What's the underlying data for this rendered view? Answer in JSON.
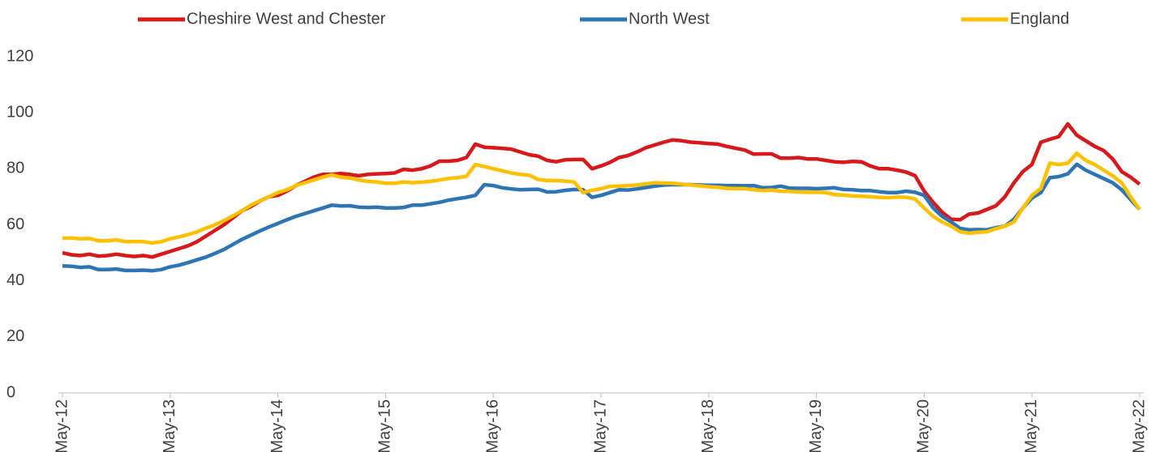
{
  "chart_data": {
    "type": "line",
    "categories": [
      "May-12",
      null,
      null,
      null,
      null,
      null,
      null,
      null,
      null,
      null,
      null,
      null,
      "May-13",
      null,
      null,
      null,
      null,
      null,
      null,
      null,
      null,
      null,
      null,
      null,
      "May-14",
      null,
      null,
      null,
      null,
      null,
      null,
      null,
      null,
      null,
      null,
      null,
      "May-15",
      null,
      null,
      null,
      null,
      null,
      null,
      null,
      null,
      null,
      null,
      null,
      "May-16",
      null,
      null,
      null,
      null,
      null,
      null,
      null,
      null,
      null,
      null,
      null,
      "May-17",
      null,
      null,
      null,
      null,
      null,
      null,
      null,
      null,
      null,
      null,
      null,
      "May-18",
      null,
      null,
      null,
      null,
      null,
      null,
      null,
      null,
      null,
      null,
      null,
      "May-19",
      null,
      null,
      null,
      null,
      null,
      null,
      null,
      null,
      null,
      null,
      null,
      "May-20",
      null,
      null,
      null,
      null,
      null,
      null,
      null,
      null,
      null,
      null,
      null,
      "May-21",
      null,
      null,
      null,
      null,
      null,
      null,
      null,
      null,
      null,
      null,
      null,
      "May-22"
    ],
    "series": [
      {
        "name": "Cheshire West and Chester",
        "color": "#d7191c",
        "values": [
          50,
          49.3,
          49,
          49.5,
          48.8,
          49,
          49.5,
          49,
          48.7,
          49,
          48.5,
          49.5,
          50.5,
          51.5,
          52.5,
          54,
          56,
          58,
          60,
          62.5,
          65,
          66.5,
          68.5,
          70,
          70.5,
          72,
          74,
          75.5,
          77,
          78,
          78,
          78.3,
          78,
          77.5,
          78,
          78.2,
          78.3,
          78.5,
          79.8,
          79.5,
          80,
          81,
          82.7,
          82.7,
          83,
          84,
          88.8,
          87.7,
          87.5,
          87.3,
          87,
          86,
          85,
          84.5,
          83,
          82.5,
          83.2,
          83.3,
          83.3,
          80,
          81,
          82.3,
          84,
          84.7,
          86,
          87.5,
          88.5,
          89.5,
          90.3,
          90,
          89.5,
          89.3,
          89,
          88.8,
          88,
          87.3,
          86.7,
          85.2,
          85.3,
          85.3,
          83.8,
          83.8,
          84,
          83.5,
          83.5,
          83,
          82.5,
          82.3,
          82.6,
          82.5,
          81,
          80,
          80,
          79.5,
          78.8,
          77.5,
          72,
          68,
          64.5,
          62,
          61.8,
          63.8,
          64.2,
          65.5,
          66.8,
          70,
          75,
          79,
          81.5,
          89.5,
          90.5,
          91.5,
          96,
          92,
          90,
          88,
          86.5,
          83.5,
          79,
          77,
          74.5
        ]
      },
      {
        "name": "North West",
        "color": "#2e75b6",
        "values": [
          45.3,
          45.2,
          44.8,
          45,
          44,
          44,
          44.2,
          43.7,
          43.7,
          43.8,
          43.6,
          44,
          45,
          45.6,
          46.5,
          47.5,
          48.5,
          49.8,
          51.2,
          53,
          54.8,
          56.3,
          57.8,
          59.2,
          60.5,
          61.8,
          63,
          64,
          65,
          66,
          67,
          66.7,
          66.8,
          66.3,
          66.2,
          66.3,
          66,
          66,
          66.2,
          67,
          67,
          67.5,
          68,
          68.8,
          69.3,
          69.8,
          70.5,
          74.3,
          74,
          73.2,
          72.8,
          72.5,
          72.6,
          72.7,
          71.7,
          71.8,
          72.3,
          72.6,
          72.5,
          69.8,
          70.5,
          71.5,
          72.5,
          72.4,
          72.8,
          73.3,
          73.8,
          74.2,
          74.3,
          74.3,
          74.3,
          74.2,
          74.1,
          74.1,
          74,
          74,
          73.9,
          74,
          73.2,
          73.3,
          73.8,
          73.1,
          73,
          73,
          72.9,
          73,
          73.2,
          72.6,
          72.5,
          72.2,
          72.2,
          71.8,
          71.5,
          71.5,
          72,
          71.6,
          70.5,
          66,
          63,
          61,
          58.7,
          58.2,
          58.3,
          58.2,
          59,
          59.5,
          62,
          66,
          69.5,
          71.5,
          76.8,
          77.2,
          78.2,
          81.6,
          79.5,
          78,
          76.5,
          75,
          72.5,
          69,
          65.5
        ]
      },
      {
        "name": "England",
        "color": "#ffc000",
        "values": [
          55.2,
          55.3,
          55,
          55.1,
          54.3,
          54.3,
          54.6,
          54,
          54,
          54,
          53.5,
          54,
          55,
          55.7,
          56.5,
          57.5,
          58.8,
          60,
          61.5,
          63.2,
          65,
          67,
          68.6,
          70,
          71.5,
          72.5,
          74,
          75,
          76,
          77,
          77.8,
          77,
          76.7,
          76,
          75.5,
          75.3,
          74.8,
          74.8,
          75.3,
          75,
          75.2,
          75.5,
          76,
          76.5,
          76.8,
          77.3,
          81.5,
          80.8,
          80,
          79.3,
          78.5,
          78,
          77.7,
          76.2,
          75.8,
          75.8,
          75.6,
          75.3,
          71.5,
          72.3,
          72.9,
          73.7,
          73.8,
          74,
          74.2,
          74.6,
          75,
          74.9,
          74.8,
          74.5,
          74.2,
          73.9,
          73.6,
          73.4,
          73,
          72.9,
          72.9,
          72.5,
          72.2,
          72.4,
          72,
          71.9,
          71.7,
          71.6,
          71.6,
          71.5,
          70.8,
          70.6,
          70.3,
          70.2,
          70,
          69.8,
          69.7,
          69.9,
          69.8,
          69.2,
          66,
          63,
          61,
          59.5,
          57.5,
          57,
          57.3,
          57.5,
          58.6,
          59.5,
          61,
          66,
          70.5,
          73,
          82,
          81.5,
          82,
          85.5,
          83,
          81.5,
          79.5,
          77.5,
          75,
          70,
          65.5
        ]
      }
    ],
    "ylim": [
      0,
      120
    ],
    "yticks": [
      0,
      20,
      40,
      60,
      80,
      100,
      120
    ],
    "grid": false
  }
}
